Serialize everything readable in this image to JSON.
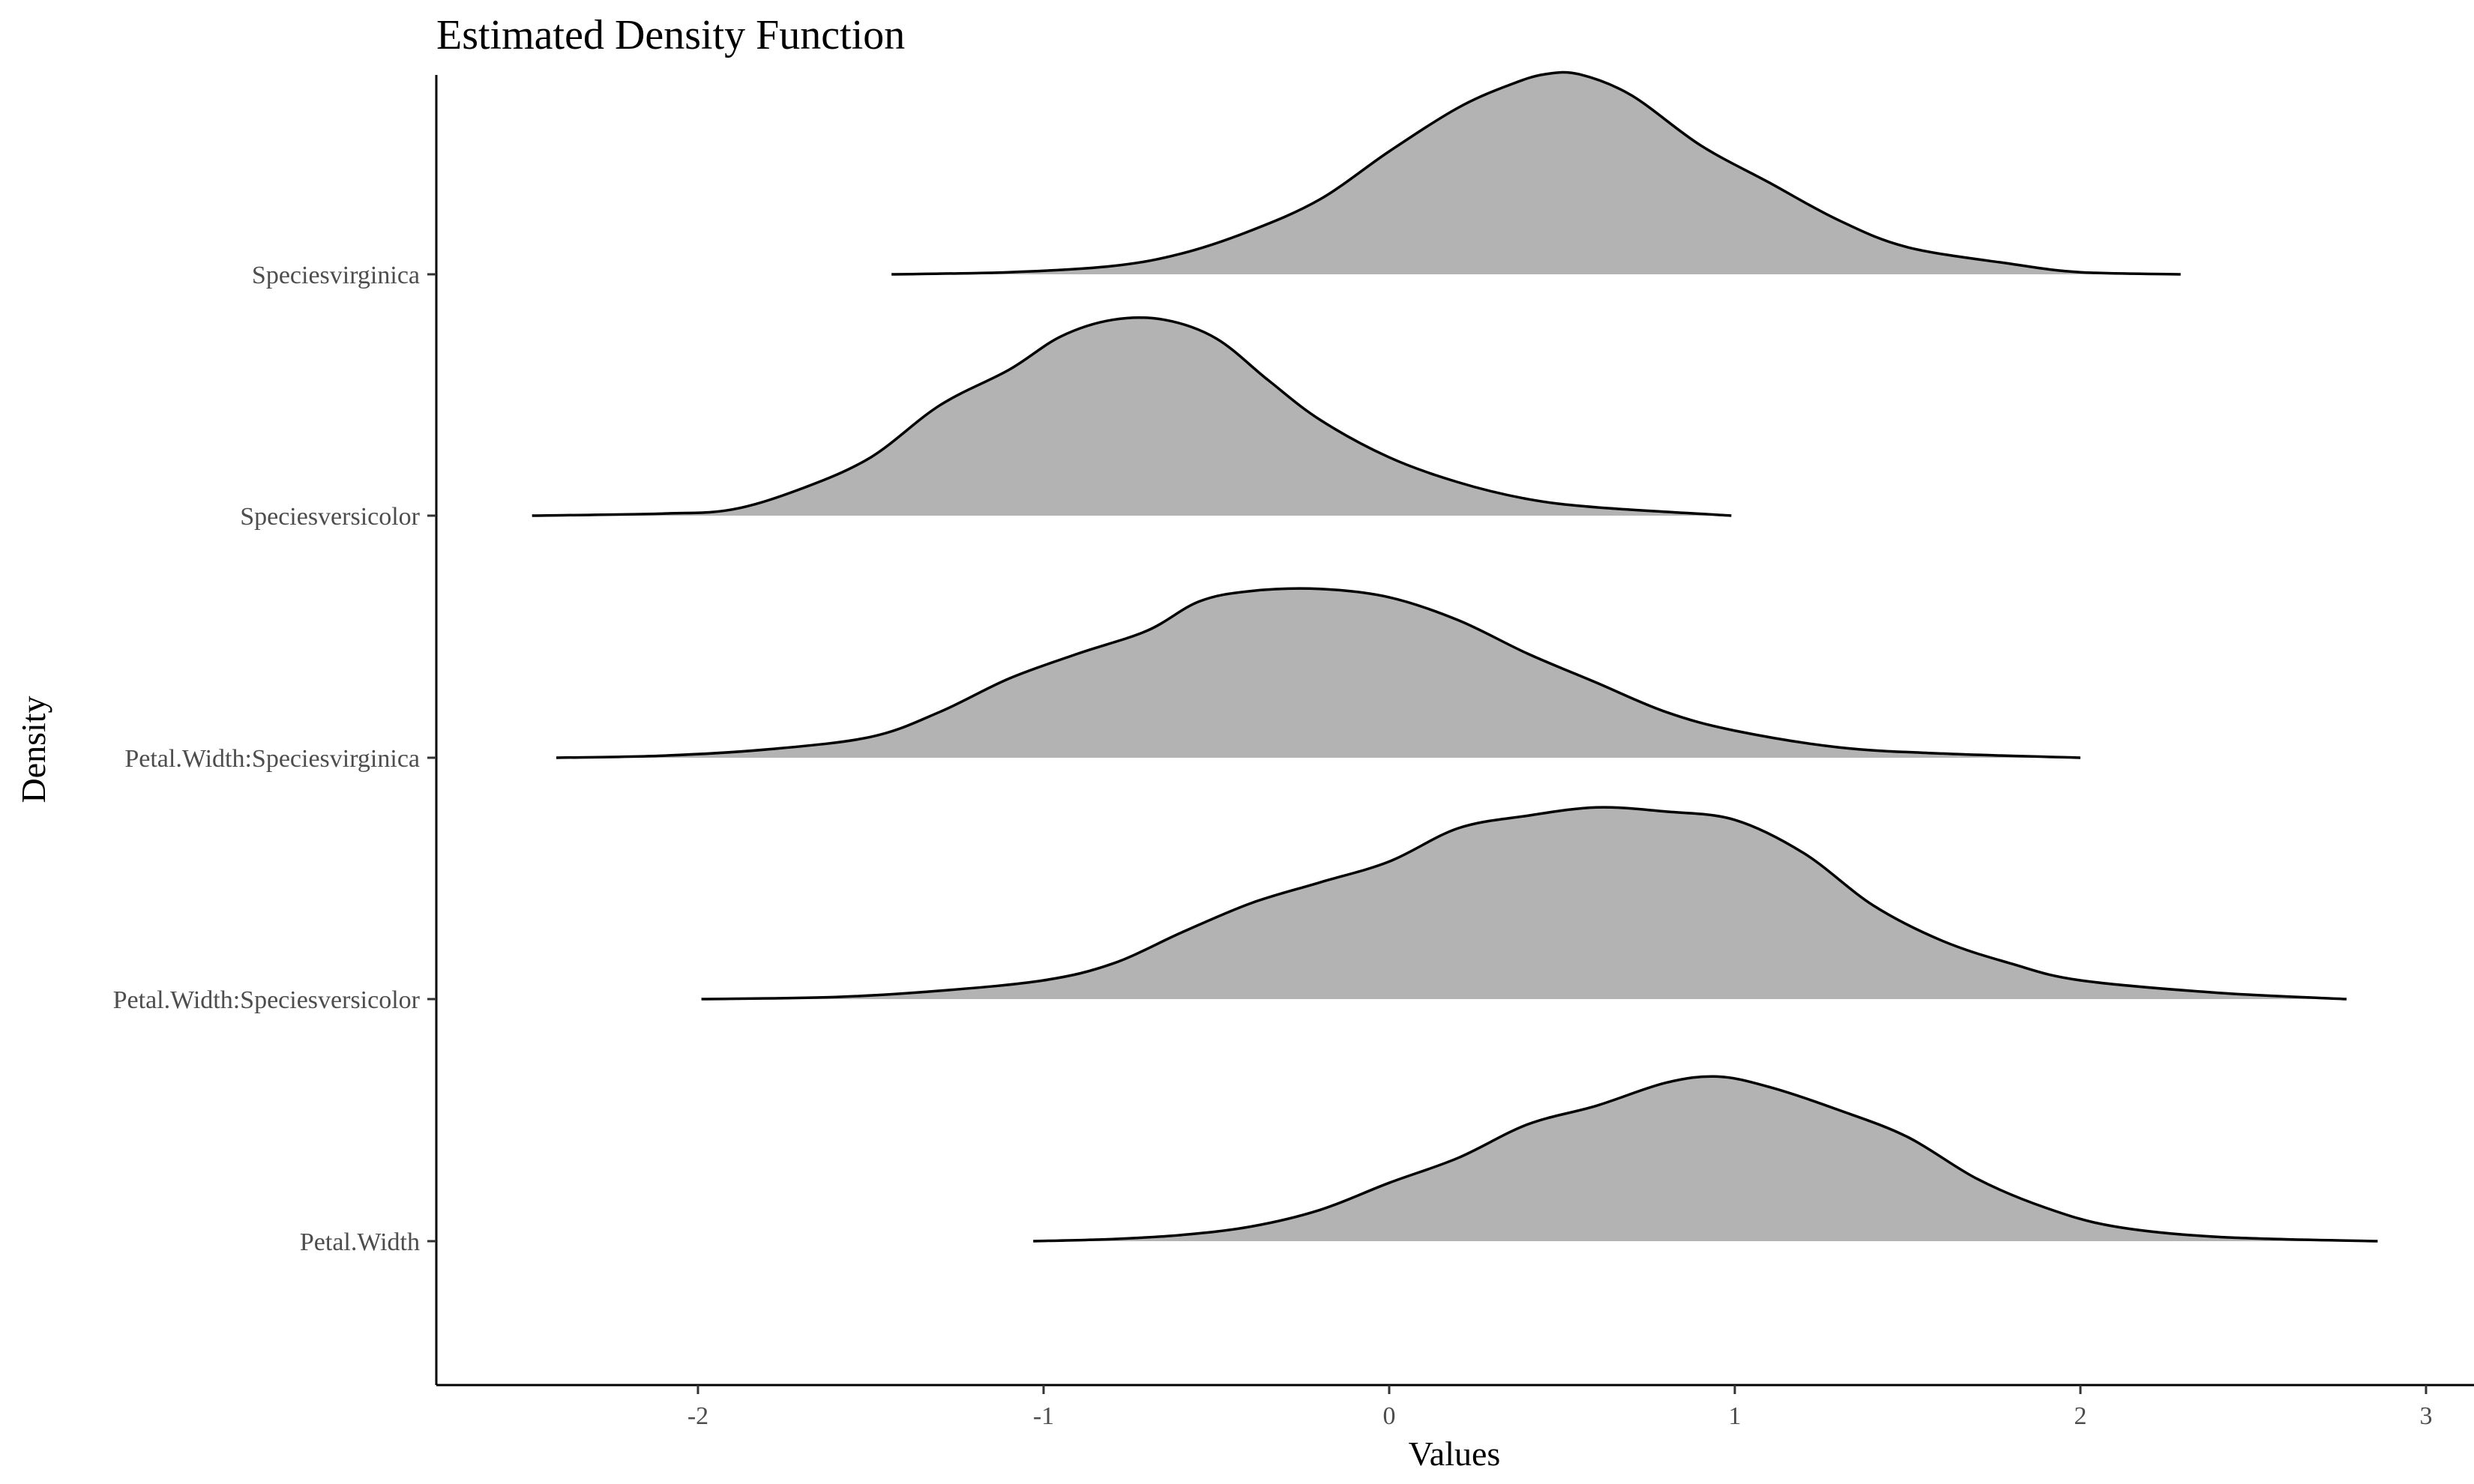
{
  "chart_data": {
    "type": "ridgeline",
    "title": "Estimated Density Function",
    "xlabel": "Values",
    "ylabel": "Density",
    "xlim": [
      -2.7,
      3.0
    ],
    "xticks": [
      -2,
      -1,
      0,
      1,
      2,
      3
    ],
    "grid": false,
    "legend": "none",
    "fill_color": "#b3b3b3",
    "line_color": "#000000",
    "series": [
      {
        "name": "Petal.Width",
        "points": [
          [
            -1.03,
            0.0
          ],
          [
            -0.8,
            0.01
          ],
          [
            -0.6,
            0.03
          ],
          [
            -0.4,
            0.07
          ],
          [
            -0.2,
            0.15
          ],
          [
            0.0,
            0.28
          ],
          [
            0.2,
            0.4
          ],
          [
            0.4,
            0.56
          ],
          [
            0.6,
            0.65
          ],
          [
            0.8,
            0.76
          ],
          [
            0.95,
            0.79
          ],
          [
            1.1,
            0.74
          ],
          [
            1.3,
            0.63
          ],
          [
            1.5,
            0.5
          ],
          [
            1.7,
            0.3
          ],
          [
            1.9,
            0.16
          ],
          [
            2.1,
            0.07
          ],
          [
            2.4,
            0.02
          ],
          [
            2.86,
            0.0
          ]
        ]
      },
      {
        "name": "Petal.Width:Speciesversicolor",
        "points": [
          [
            -1.99,
            0.0
          ],
          [
            -1.6,
            0.01
          ],
          [
            -1.3,
            0.04
          ],
          [
            -1.0,
            0.09
          ],
          [
            -0.8,
            0.17
          ],
          [
            -0.6,
            0.32
          ],
          [
            -0.4,
            0.46
          ],
          [
            -0.2,
            0.56
          ],
          [
            0.0,
            0.66
          ],
          [
            0.2,
            0.82
          ],
          [
            0.4,
            0.88
          ],
          [
            0.6,
            0.92
          ],
          [
            0.8,
            0.9
          ],
          [
            1.0,
            0.86
          ],
          [
            1.2,
            0.7
          ],
          [
            1.4,
            0.45
          ],
          [
            1.6,
            0.28
          ],
          [
            1.8,
            0.17
          ],
          [
            2.0,
            0.09
          ],
          [
            2.4,
            0.03
          ],
          [
            2.77,
            0.0
          ]
        ]
      },
      {
        "name": "Petal.Width:Speciesvirginica",
        "points": [
          [
            -2.41,
            0.0
          ],
          [
            -2.1,
            0.01
          ],
          [
            -1.8,
            0.04
          ],
          [
            -1.5,
            0.1
          ],
          [
            -1.3,
            0.22
          ],
          [
            -1.1,
            0.38
          ],
          [
            -0.9,
            0.5
          ],
          [
            -0.7,
            0.61
          ],
          [
            -0.55,
            0.75
          ],
          [
            -0.4,
            0.8
          ],
          [
            -0.2,
            0.81
          ],
          [
            0.0,
            0.77
          ],
          [
            0.2,
            0.66
          ],
          [
            0.4,
            0.5
          ],
          [
            0.6,
            0.36
          ],
          [
            0.8,
            0.22
          ],
          [
            1.0,
            0.13
          ],
          [
            1.3,
            0.05
          ],
          [
            1.6,
            0.02
          ],
          [
            2.0,
            0.0
          ]
        ]
      },
      {
        "name": "Speciesversicolor",
        "points": [
          [
            -2.48,
            0.0
          ],
          [
            -2.1,
            0.01
          ],
          [
            -1.9,
            0.03
          ],
          [
            -1.7,
            0.13
          ],
          [
            -1.5,
            0.28
          ],
          [
            -1.3,
            0.53
          ],
          [
            -1.1,
            0.7
          ],
          [
            -0.95,
            0.86
          ],
          [
            -0.8,
            0.94
          ],
          [
            -0.65,
            0.94
          ],
          [
            -0.5,
            0.85
          ],
          [
            -0.35,
            0.65
          ],
          [
            -0.2,
            0.46
          ],
          [
            0.0,
            0.28
          ],
          [
            0.2,
            0.16
          ],
          [
            0.4,
            0.08
          ],
          [
            0.6,
            0.04
          ],
          [
            0.99,
            0.0
          ]
        ]
      },
      {
        "name": "Speciesvirginica",
        "points": [
          [
            -1.44,
            0.0
          ],
          [
            -1.1,
            0.01
          ],
          [
            -0.8,
            0.04
          ],
          [
            -0.6,
            0.1
          ],
          [
            -0.4,
            0.21
          ],
          [
            -0.2,
            0.36
          ],
          [
            0.0,
            0.59
          ],
          [
            0.2,
            0.8
          ],
          [
            0.35,
            0.91
          ],
          [
            0.45,
            0.96
          ],
          [
            0.55,
            0.96
          ],
          [
            0.7,
            0.86
          ],
          [
            0.9,
            0.62
          ],
          [
            1.1,
            0.44
          ],
          [
            1.3,
            0.26
          ],
          [
            1.5,
            0.13
          ],
          [
            1.8,
            0.05
          ],
          [
            2.0,
            0.01
          ],
          [
            2.29,
            0.0
          ]
        ]
      }
    ]
  }
}
